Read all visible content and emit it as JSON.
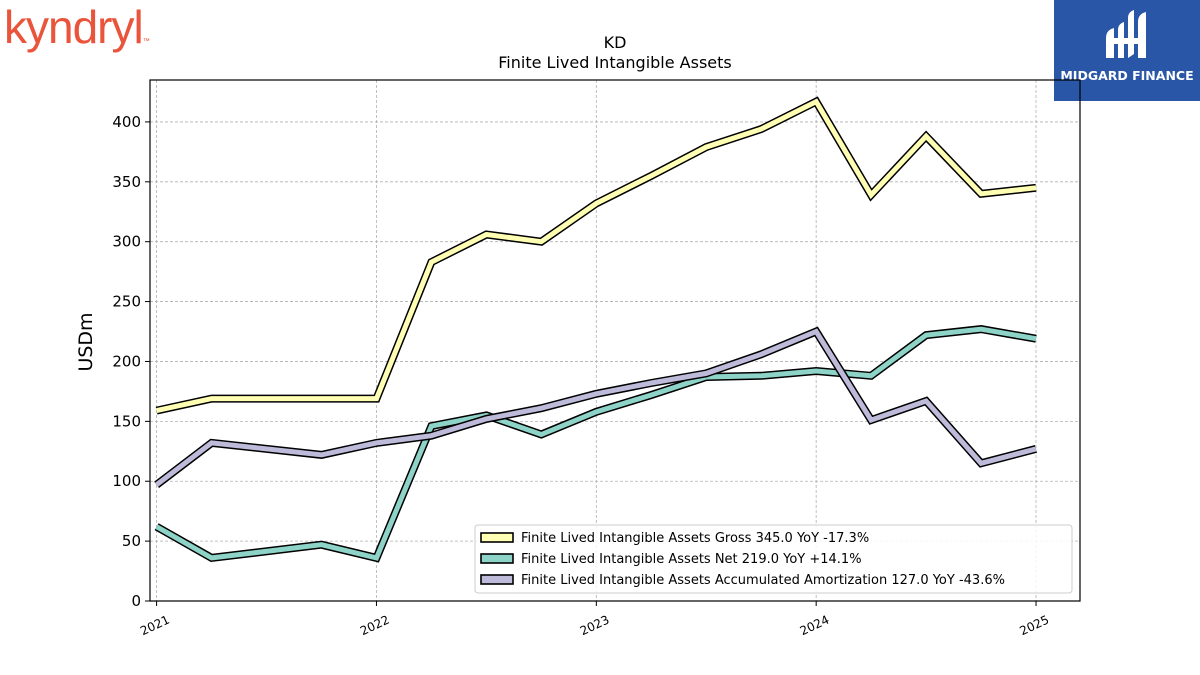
{
  "brand": {
    "name": "kyndryl",
    "tm": "™",
    "color": "#e9543b"
  },
  "badge": {
    "text": "MIDGARD FINANCE",
    "bg": "#2a56a8"
  },
  "chart_data": {
    "type": "line",
    "title": "KD",
    "subtitle": "Finite Lived Intangible Assets",
    "ylabel": "USDm",
    "xlabel": "",
    "x_ticks": [
      "2021",
      "2022",
      "2023",
      "2024",
      "2025"
    ],
    "x_range": [
      2020.97,
      2025.2
    ],
    "ylim": [
      0,
      435
    ],
    "y_ticks": [
      0,
      50,
      100,
      150,
      200,
      250,
      300,
      350,
      400
    ],
    "grid": true,
    "legend_position": "lower-right",
    "x": [
      2021.0,
      2021.25,
      2021.75,
      2022.0,
      2022.25,
      2022.5,
      2022.75,
      2023.0,
      2023.25,
      2023.5,
      2023.75,
      2024.0,
      2024.25,
      2024.5,
      2024.75,
      2025.0
    ],
    "series": [
      {
        "name": "Finite Lived Intangible Assets Gross",
        "legend": "Finite Lived Intangible Assets Gross  345.0 YoY -17.3%",
        "color": "#ffffb3",
        "values": [
          159,
          169,
          169,
          169,
          283,
          306,
          300,
          332,
          355,
          379,
          394,
          417,
          339,
          388,
          340,
          345
        ]
      },
      {
        "name": "Finite Lived Intangible Assets Net",
        "legend": "Finite Lived Intangible Assets Net  219.0 YoY +14.1%",
        "color": "#8dd3c7",
        "values": [
          62,
          36,
          47,
          36,
          146,
          155,
          139,
          158,
          172,
          187,
          188,
          192,
          188,
          222,
          227,
          219
        ]
      },
      {
        "name": "Finite Lived Intangible Assets Accumulated Amortization",
        "legend": "Finite Lived Intangible Assets Accumulated Amortization  127.0 YoY -43.6%",
        "color": "#bebada",
        "values": [
          97,
          132,
          122,
          132,
          138,
          152,
          161,
          173,
          182,
          190,
          206,
          225,
          151,
          167,
          115,
          127
        ]
      }
    ]
  }
}
